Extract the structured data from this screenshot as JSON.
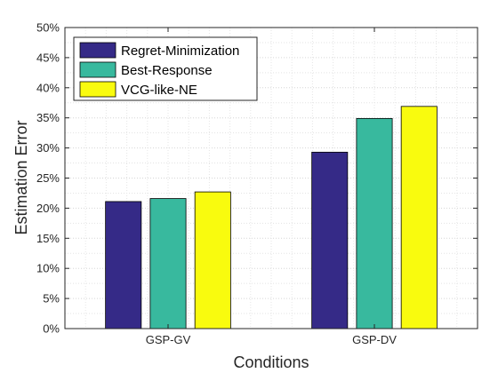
{
  "chart_data": {
    "type": "bar",
    "xlabel": "Conditions",
    "ylabel": "Estimation Error",
    "categories": [
      "GSP-GV",
      "GSP-DV"
    ],
    "ylim": [
      0,
      50
    ],
    "ytick_step": 5,
    "ytick_suffix": "%",
    "grid": true,
    "minor_grid": true,
    "legend_placement": "top-left",
    "series": [
      {
        "name": "Regret-Minimization",
        "values": [
          21.1,
          29.3
        ],
        "color": "#352a87"
      },
      {
        "name": "Best-Response",
        "values": [
          21.6,
          34.9
        ],
        "color": "#38b99e"
      },
      {
        "name": "VCG-like-NE",
        "values": [
          22.7,
          36.9
        ],
        "color": "#f9fb0e"
      }
    ]
  }
}
